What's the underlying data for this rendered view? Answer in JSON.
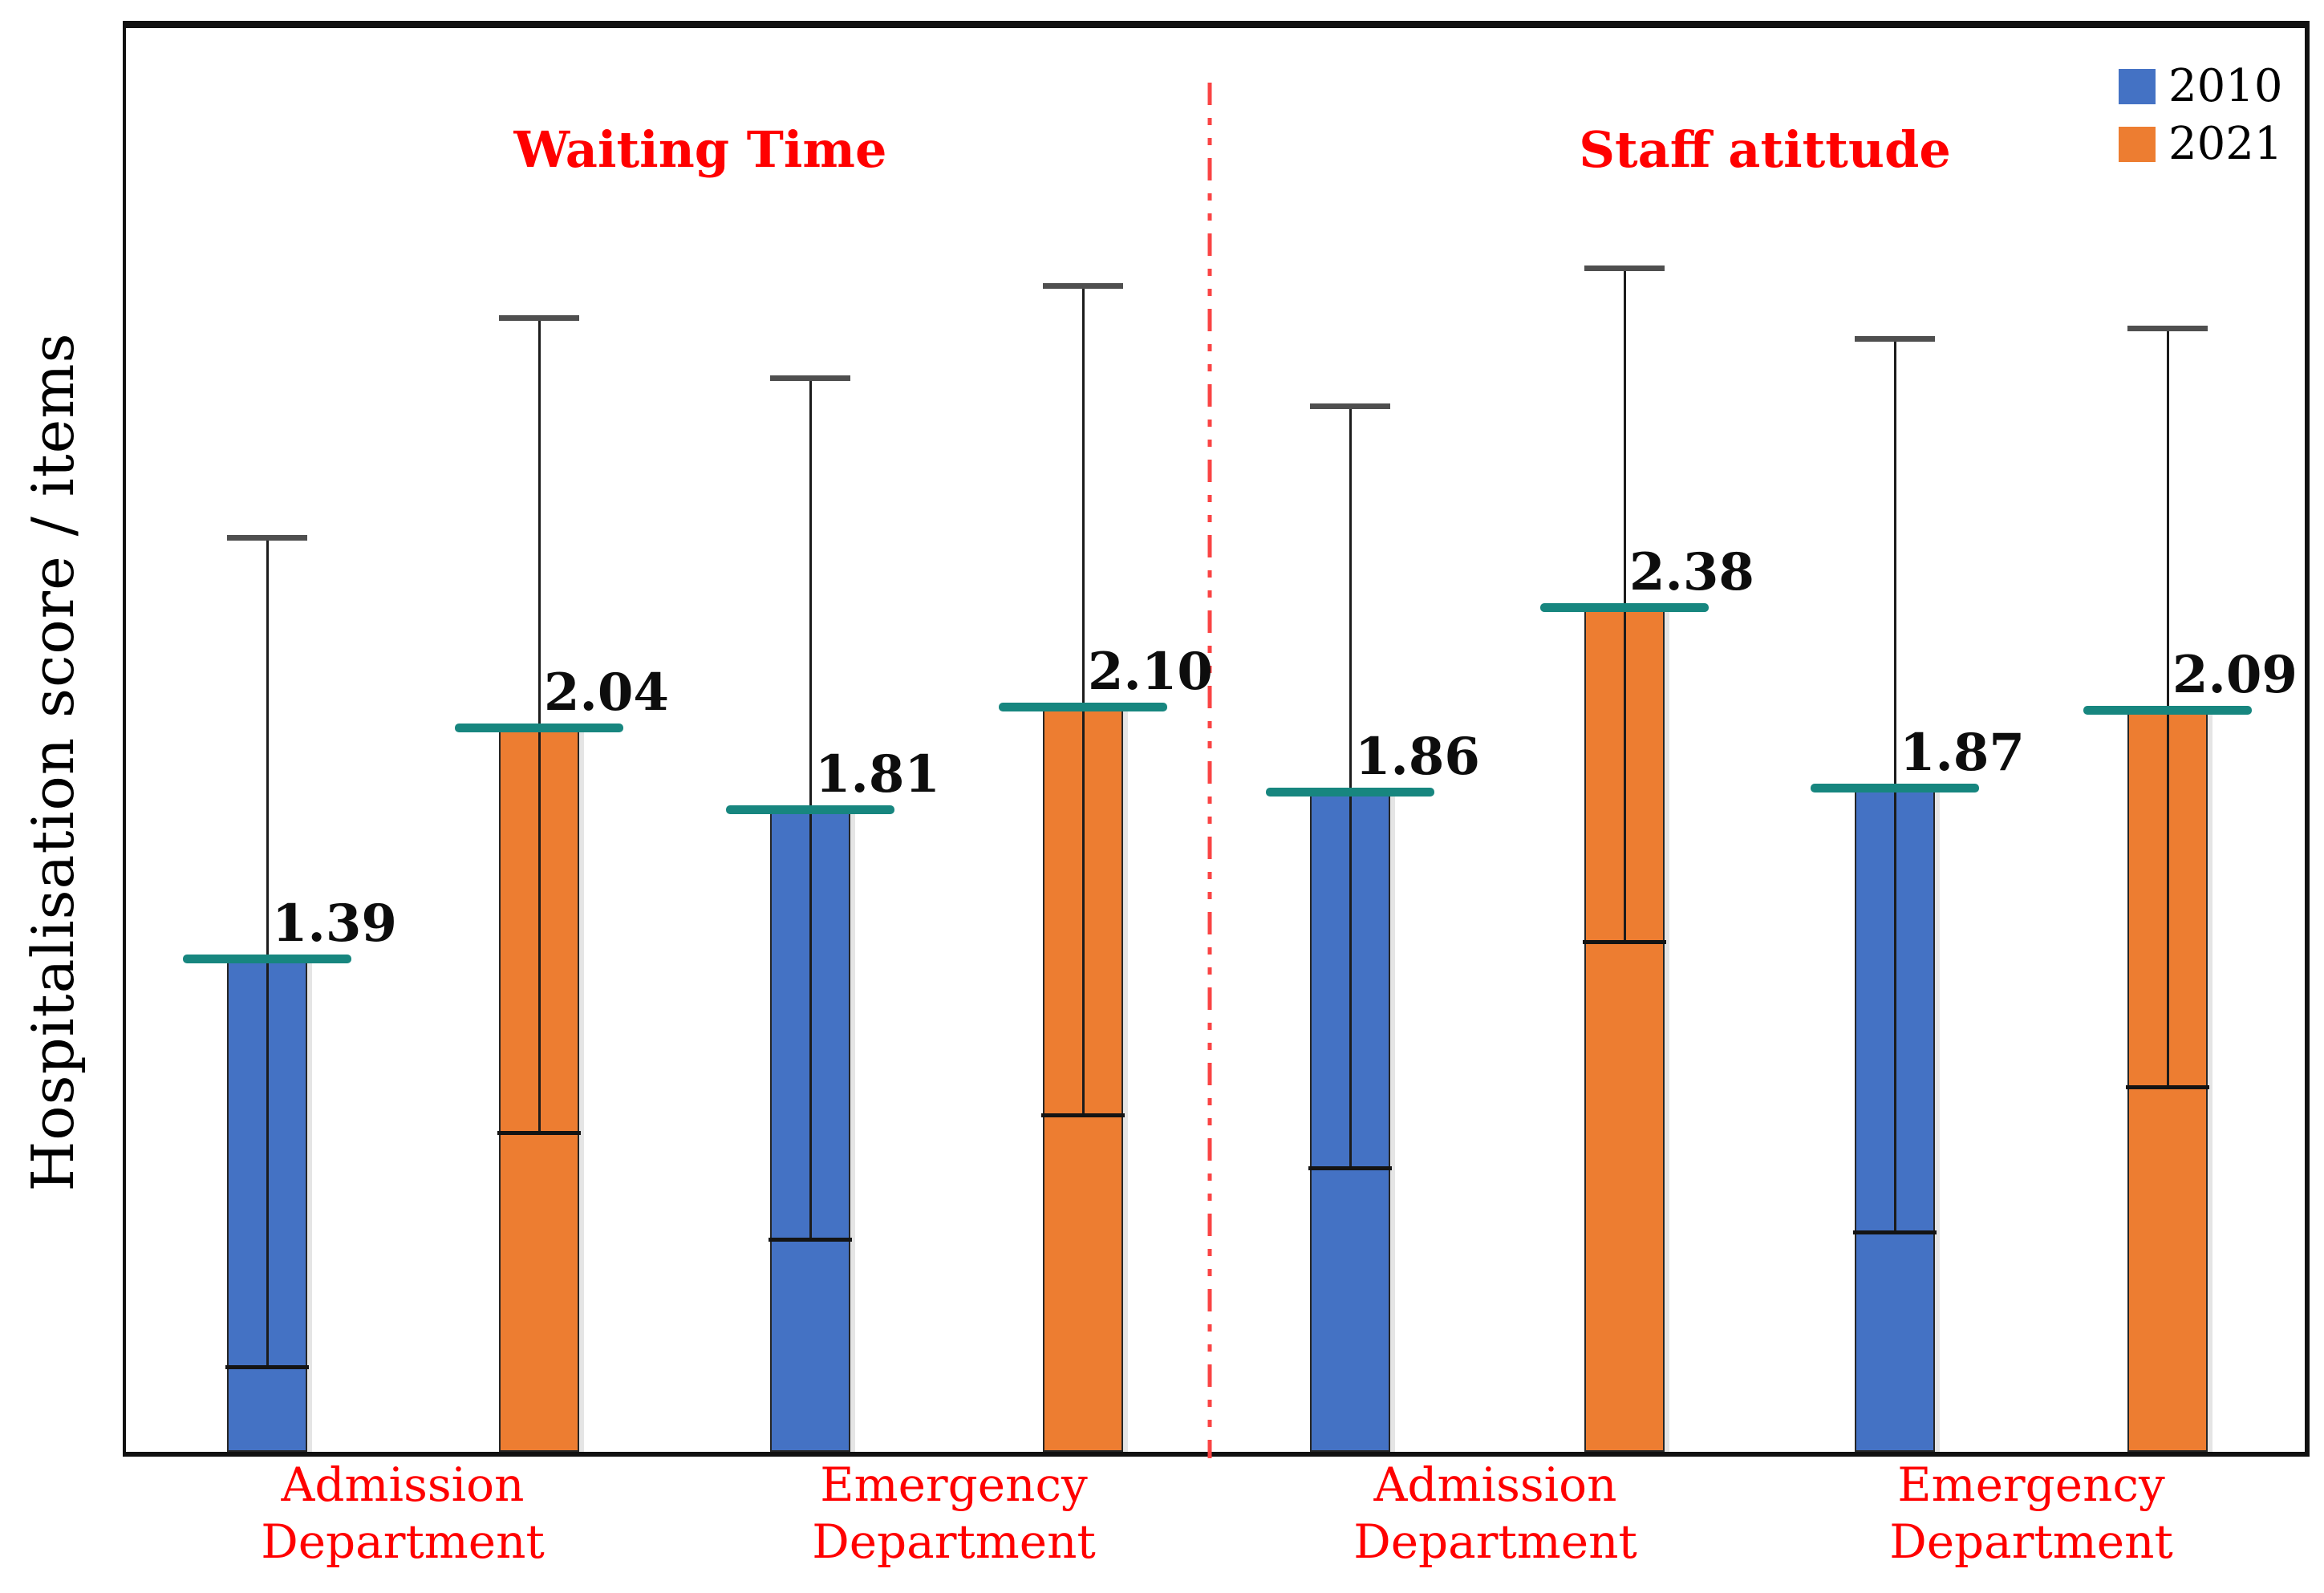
{
  "chart_data": {
    "type": "bar",
    "title": "",
    "ylabel": "Hospitalisation score / items",
    "ylim": [
      0,
      4.03
    ],
    "grid": false,
    "legend": {
      "position": "top-right",
      "entries": [
        {
          "label": "2010",
          "color": "#4472C4"
        },
        {
          "label": "2021",
          "color": "#ED7D31"
        }
      ]
    },
    "sections": [
      {
        "title": "Waiting Time",
        "color": "#FF0000"
      },
      {
        "title": "Staff atittude",
        "color": "#FF0000"
      }
    ],
    "categories": [
      {
        "section": 0,
        "line1": "Admission",
        "line2": "Department"
      },
      {
        "section": 0,
        "line1": "Emergency",
        "line2": "Department"
      },
      {
        "section": 1,
        "line1": "Admission",
        "line2": "Department"
      },
      {
        "section": 1,
        "line1": "Emergency",
        "line2": "Department"
      }
    ],
    "series_names": [
      "2010",
      "2021"
    ],
    "bars": [
      {
        "category": 0,
        "series": "2010",
        "value": 1.39,
        "label": "1.39",
        "err_up": 1.19,
        "err_down": 1.15,
        "color": "#4472C4"
      },
      {
        "category": 0,
        "series": "2021",
        "value": 2.04,
        "label": "2.04",
        "err_up": 1.16,
        "err_down": 1.14,
        "color": "#ED7D31"
      },
      {
        "category": 1,
        "series": "2010",
        "value": 1.81,
        "label": "1.81",
        "err_up": 1.22,
        "err_down": 1.21,
        "color": "#4472C4"
      },
      {
        "category": 1,
        "series": "2021",
        "value": 2.1,
        "label": "2.10",
        "err_up": 1.19,
        "err_down": 1.15,
        "color": "#ED7D31"
      },
      {
        "category": 2,
        "series": "2010",
        "value": 1.86,
        "label": "1.86",
        "err_up": 1.09,
        "err_down": 1.06,
        "color": "#4472C4"
      },
      {
        "category": 2,
        "series": "2021",
        "value": 2.38,
        "label": "2.38",
        "err_up": 0.96,
        "err_down": 0.94,
        "color": "#ED7D31"
      },
      {
        "category": 3,
        "series": "2010",
        "value": 1.87,
        "label": "1.87",
        "err_up": 1.27,
        "err_down": 1.25,
        "color": "#4472C4"
      },
      {
        "category": 3,
        "series": "2021",
        "value": 2.09,
        "label": "2.09",
        "err_up": 1.08,
        "err_down": 1.06,
        "color": "#ED7D31"
      }
    ],
    "divider": {
      "style": "dash-dot-dot",
      "color": "#FA4343"
    },
    "colors": {
      "mean_marker": "#17867F",
      "error_cap_top": "#4F4F4F",
      "error_cap_bottom": "#141414",
      "axis_category_color": "#FF0000",
      "frame_color": "#111111"
    }
  }
}
